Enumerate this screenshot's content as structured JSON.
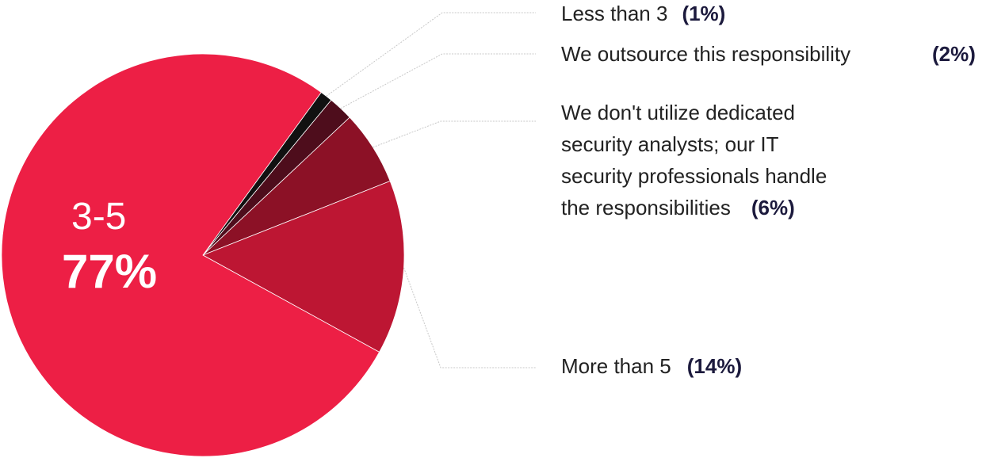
{
  "chart_data": {
    "type": "pie",
    "slices": [
      {
        "label": "3-5",
        "value": 77,
        "value_label": "77%",
        "color": "#ed1f45"
      },
      {
        "label": "Less than 3",
        "value": 1,
        "value_label": "(1%)",
        "color": "#111111"
      },
      {
        "label": "We outsource this responsibility",
        "value": 2,
        "value_label": "(2%)",
        "color": "#4e0d1c"
      },
      {
        "label": "We don't utilize dedicated security analysts; our IT security professionals handle the responsibilities",
        "value": 6,
        "value_label": "(6%)",
        "color": "#8c1126"
      },
      {
        "label": "More than 5",
        "value": 14,
        "value_label": "(14%)",
        "color": "#bd1633"
      }
    ]
  },
  "labels": {
    "less_than_3": {
      "name": "Less than 3",
      "pct": "(1%)"
    },
    "outsource": {
      "name": "We outsource this responsibility",
      "pct": "(2%)"
    },
    "no_dedicated": {
      "line1": "We don't utilize dedicated",
      "line2": "security analysts; our IT",
      "line3": "security professionals handle",
      "line4": "the responsibilities",
      "pct": "(6%)"
    },
    "more_than_5": {
      "name": "More than 5",
      "pct": "(14%)"
    },
    "three_to_five": {
      "name": "3-5",
      "pct": "77%"
    }
  },
  "colors": {
    "leader_line": "#c8c8c8",
    "pct_text": "#1c1a3d"
  }
}
